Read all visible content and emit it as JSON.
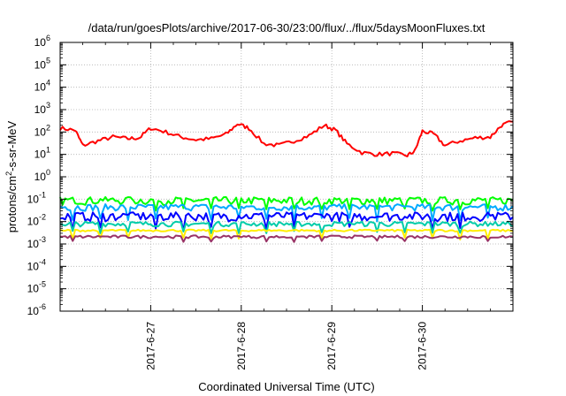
{
  "chart_data": {
    "type": "line",
    "title": "/data/run/goesPlots/archive/2017-06-30/23:00/flux/../flux/5daysMoonFluxes.txt",
    "xlabel": "Coordinated Universal Time (UTC)",
    "ylabel": "protons/cm²-s-sr-MeV",
    "ylabel_parts": [
      "protons/cm",
      "2",
      "-s-sr-MeV"
    ],
    "y_scale": "log",
    "ylim": [
      1e-06,
      1000000.0
    ],
    "y_ticks": [
      {
        "exp": "-6",
        "value": 1e-06
      },
      {
        "exp": "-5",
        "value": 1e-05
      },
      {
        "exp": "-4",
        "value": 0.0001
      },
      {
        "exp": "-3",
        "value": 0.001
      },
      {
        "exp": "-2",
        "value": 0.01
      },
      {
        "exp": "-1",
        "value": 0.1
      },
      {
        "exp": "0",
        "value": 1
      },
      {
        "exp": "1",
        "value": 10
      },
      {
        "exp": "2",
        "value": 100
      },
      {
        "exp": "3",
        "value": 1000
      },
      {
        "exp": "4",
        "value": 10000
      },
      {
        "exp": "5",
        "value": 100000
      },
      {
        "exp": "6",
        "value": 1000000
      }
    ],
    "y_tick_base": "10",
    "xlim": [
      "2017-06-26 00:00",
      "2017-07-01 00:00"
    ],
    "x_ticks": [
      "2017-6-27",
      "2017-6-28",
      "2017-6-29",
      "2017-6-30"
    ],
    "grid": true,
    "series": [
      {
        "color": "#ff0000",
        "x": [
          "2017-06-26 00:00",
          "2017-06-26 04:00",
          "2017-06-26 06:00",
          "2017-06-26 10:00",
          "2017-06-26 14:00",
          "2017-06-26 18:00",
          "2017-06-26 21:00",
          "2017-06-27 00:00",
          "2017-06-27 04:00",
          "2017-06-27 08:00",
          "2017-06-27 12:00",
          "2017-06-27 16:00",
          "2017-06-27 20:00",
          "2017-06-27 23:00",
          "2017-06-28 02:00",
          "2017-06-28 06:00",
          "2017-06-28 10:00",
          "2017-06-28 14:00",
          "2017-06-28 18:00",
          "2017-06-28 22:00",
          "2017-06-29 01:00",
          "2017-06-29 04:00",
          "2017-06-29 08:00",
          "2017-06-29 12:00",
          "2017-06-29 16:00",
          "2017-06-29 20:00",
          "2017-06-29 22:00",
          "2017-06-30 00:00",
          "2017-06-30 03:00",
          "2017-06-30 06:00",
          "2017-06-30 10:00",
          "2017-06-30 14:00",
          "2017-06-30 18:00",
          "2017-06-30 21:00",
          "2017-07-01 00:00"
        ],
        "values": [
          150,
          120,
          25,
          40,
          60,
          50,
          55,
          150,
          100,
          60,
          45,
          50,
          80,
          230,
          150,
          30,
          25,
          40,
          70,
          200,
          120,
          30,
          12,
          10,
          11,
          9,
          14,
          110,
          80,
          25,
          40,
          55,
          60,
          200,
          290
        ]
      },
      {
        "color": "#00ff00",
        "base": 0.09,
        "amplitude": 0.035,
        "dips": [
          0.03,
          0.04
        ]
      },
      {
        "color": "#00aaff",
        "base": 0.045,
        "amplitude": 0.015,
        "dips": [
          0.01,
          0.015
        ]
      },
      {
        "color": "#0000ff",
        "base": 0.018,
        "amplitude": 0.008,
        "dips": [
          0.004,
          0.006
        ]
      },
      {
        "color": "#00ccaa",
        "base": 0.008,
        "amplitude": 0.002,
        "dips": [
          0.003,
          0.004
        ]
      },
      {
        "color": "#ffee00",
        "base": 0.004,
        "amplitude": 0.0004,
        "dips": [
          0.0015,
          0.002
        ]
      },
      {
        "color": "#993366",
        "base": 0.0021,
        "amplitude": 0.0003,
        "dips": [
          0.0012,
          0.0014
        ]
      }
    ]
  }
}
